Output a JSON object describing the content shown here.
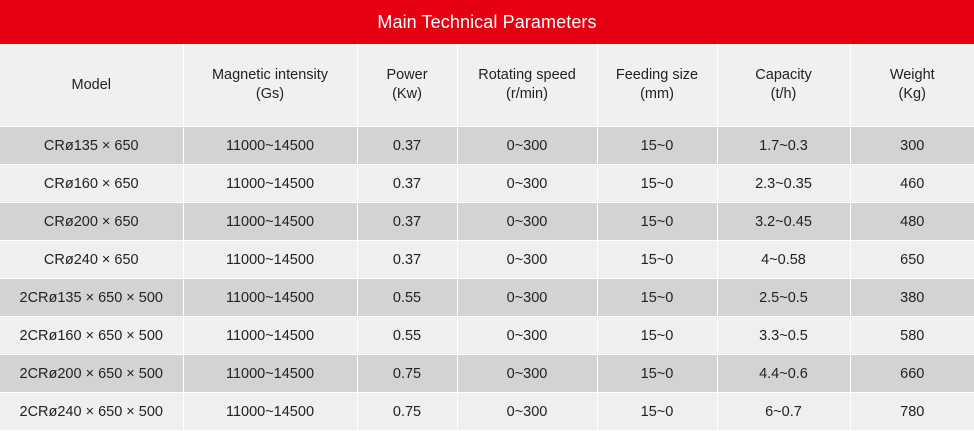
{
  "title": "Main Technical Parameters",
  "columns": [
    {
      "line1": "Model",
      "line2": ""
    },
    {
      "line1": "Magnetic intensity",
      "line2": "(Gs)"
    },
    {
      "line1": "Power",
      "line2": "(Kw)"
    },
    {
      "line1": "Rotating speed",
      "line2": "(r/min)"
    },
    {
      "line1": "Feeding size",
      "line2": "(mm)"
    },
    {
      "line1": "Capacity",
      "line2": "(t/h)"
    },
    {
      "line1": "Weight",
      "line2": "(Kg)"
    }
  ],
  "rows": [
    [
      "CRø135 × 650",
      "11000~14500",
      "0.37",
      "0~300",
      "15~0",
      "1.7~0.3",
      "300"
    ],
    [
      "CRø160 × 650",
      "11000~14500",
      "0.37",
      "0~300",
      "15~0",
      "2.3~0.35",
      "460"
    ],
    [
      "CRø200 × 650",
      "11000~14500",
      "0.37",
      "0~300",
      "15~0",
      "3.2~0.45",
      "480"
    ],
    [
      "CRø240 × 650",
      "11000~14500",
      "0.37",
      "0~300",
      "15~0",
      "4~0.58",
      "650"
    ],
    [
      "2CRø135 × 650 × 500",
      "11000~14500",
      "0.55",
      "0~300",
      "15~0",
      "2.5~0.5",
      "380"
    ],
    [
      "2CRø160 × 650 × 500",
      "11000~14500",
      "0.55",
      "0~300",
      "15~0",
      "3.3~0.5",
      "580"
    ],
    [
      "2CRø200 × 650 × 500",
      "11000~14500",
      "0.75",
      "0~300",
      "15~0",
      "4.4~0.6",
      "660"
    ],
    [
      "2CRø240 × 650 × 500",
      "11000~14500",
      "0.75",
      "0~300",
      "15~0",
      "6~0.7",
      "780"
    ]
  ]
}
